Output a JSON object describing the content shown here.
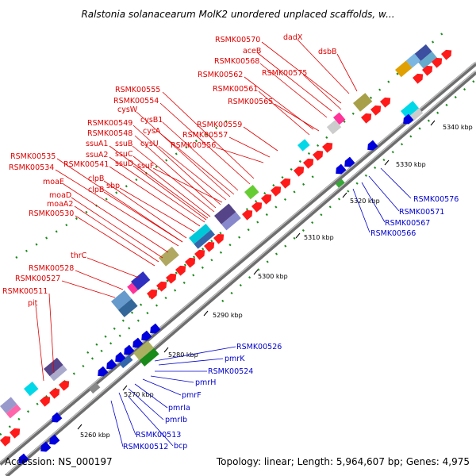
{
  "title": "Ralstonia solanacearum MolK2 unordered unplaced scaffolds, w...",
  "footer": {
    "accession": "Accession: NS_000197",
    "summary": "Topology: linear; Length: 5,964,607 bp; Genes: 4,975"
  },
  "ticks": [
    "5260 kbp",
    "5270 kbp",
    "5280 kbp",
    "5290 kbp",
    "5300 kbp",
    "5310 kbp",
    "5320 kbp",
    "5330 kbp",
    "5340 kbp"
  ],
  "labels_forward": [
    "RSMK00570",
    "dadX",
    "aceB",
    "dsbB",
    "RSMK00568",
    "RSMK00575",
    "RSMK00562",
    "RSMK00561",
    "RSMK00565",
    "RSMK00555",
    "RSMK00554",
    "cysW",
    "cysB1",
    "cysA",
    "RSMK00549",
    "RSMK00559",
    "RSMK00548",
    "RSMK00557",
    "cysU",
    "ssuA1",
    "ssuB",
    "RSMK00556",
    "ssuA2",
    "ssuC",
    "RSMK00541",
    "ssuD",
    "ssuF",
    "RSMK00535",
    "RSMK00534",
    "clpB",
    "sbp",
    "clpB",
    "moaE",
    "moaD",
    "moaA2",
    "RSMK00530",
    "thrC",
    "RSMK00528",
    "RSMK00527",
    "RSMK00511",
    "pit"
  ],
  "labels_reverse": [
    "RSMK00576",
    "RSMK00571",
    "RSMK00567",
    "RSMK00566",
    "RSMK00526",
    "pmrK",
    "RSMK00524",
    "pmrH",
    "pmrF",
    "pmrIa",
    "pmrIb",
    "RSMK00513",
    "bcp",
    "RSMK00512"
  ]
}
